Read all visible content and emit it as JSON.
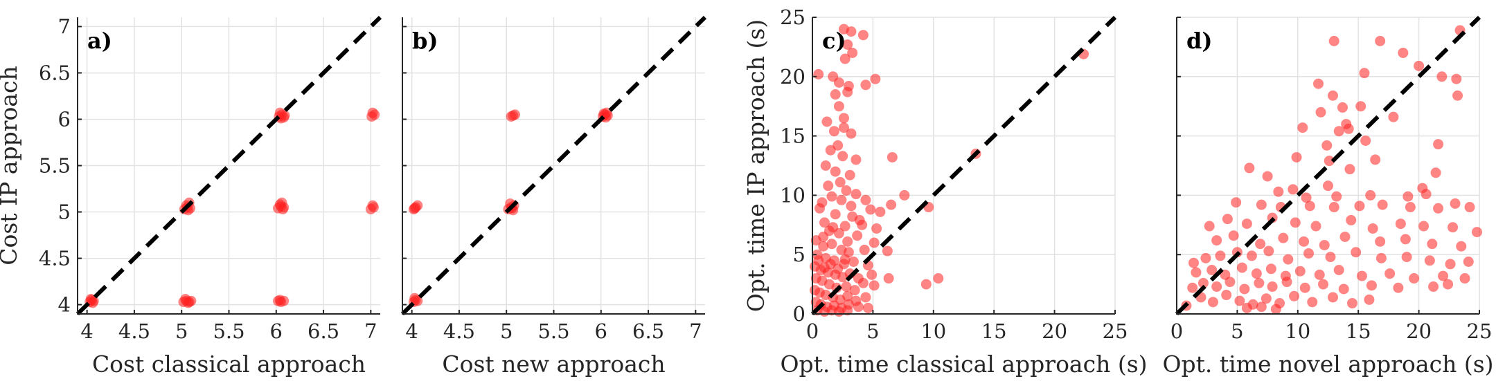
{
  "chart_data": [
    {
      "type": "scatter",
      "panel_label": "a)",
      "xlabel": "Cost classical approach",
      "ylabel": "Cost IP approach",
      "xlim": [
        3.9,
        7.1
      ],
      "ylim": [
        3.9,
        7.1
      ],
      "xticks": [
        4,
        4.5,
        5,
        5.5,
        6,
        6.5,
        7
      ],
      "yticks": [
        4,
        4.5,
        5,
        5.5,
        6,
        6.5,
        7
      ],
      "grid": true,
      "diagonal": "y = x (dashed black)",
      "point_color": "#ff2020",
      "points": [
        [
          4.03,
          4.03
        ],
        [
          4.05,
          4.05
        ],
        [
          4.07,
          4.04
        ],
        [
          4.04,
          4.06
        ],
        [
          4.06,
          4.02
        ],
        [
          5.02,
          4.03
        ],
        [
          5.05,
          4.04
        ],
        [
          5.08,
          4.03
        ],
        [
          5.1,
          4.04
        ],
        [
          5.04,
          4.06
        ],
        [
          5.07,
          4.02
        ],
        [
          5.03,
          5.03
        ],
        [
          5.06,
          5.05
        ],
        [
          5.09,
          5.04
        ],
        [
          5.05,
          5.07
        ],
        [
          5.08,
          5.1
        ],
        [
          5.07,
          5.02
        ],
        [
          6.02,
          4.04
        ],
        [
          6.05,
          4.03
        ],
        [
          6.08,
          4.04
        ],
        [
          6.04,
          4.05
        ],
        [
          6.02,
          5.04
        ],
        [
          6.05,
          5.06
        ],
        [
          6.08,
          5.05
        ],
        [
          6.04,
          5.08
        ],
        [
          6.07,
          5.03
        ],
        [
          6.06,
          5.1
        ],
        [
          6.03,
          6.03
        ],
        [
          6.06,
          6.05
        ],
        [
          6.09,
          6.04
        ],
        [
          6.04,
          6.07
        ],
        [
          6.08,
          6.02
        ],
        [
          6.05,
          6.01
        ],
        [
          7.0,
          5.03
        ],
        [
          7.03,
          5.05
        ],
        [
          7.02,
          5.07
        ],
        [
          7.01,
          6.03
        ],
        [
          7.04,
          6.05
        ],
        [
          7.02,
          6.07
        ]
      ]
    },
    {
      "type": "scatter",
      "panel_label": "b)",
      "xlabel": "Cost new approach",
      "ylabel": "",
      "xlim": [
        3.9,
        7.1
      ],
      "ylim": [
        3.9,
        7.1
      ],
      "xticks": [
        4,
        4.5,
        5,
        5.5,
        6,
        6.5,
        7
      ],
      "yticks": [],
      "grid": true,
      "diagonal": "y = x (dashed black)",
      "point_color": "#ff2020",
      "points": [
        [
          4.02,
          4.03
        ],
        [
          4.04,
          4.05
        ],
        [
          4.06,
          4.04
        ],
        [
          4.03,
          4.07
        ],
        [
          4.02,
          5.03
        ],
        [
          4.04,
          5.05
        ],
        [
          4.06,
          5.07
        ],
        [
          4.03,
          5.04
        ],
        [
          5.02,
          5.03
        ],
        [
          5.05,
          5.05
        ],
        [
          5.08,
          5.07
        ],
        [
          5.04,
          5.09
        ],
        [
          5.07,
          5.02
        ],
        [
          5.06,
          5.04
        ],
        [
          5.05,
          6.03
        ],
        [
          5.07,
          6.04
        ],
        [
          5.09,
          6.05
        ],
        [
          6.02,
          6.03
        ],
        [
          6.04,
          6.05
        ],
        [
          6.06,
          6.07
        ],
        [
          6.05,
          6.02
        ],
        [
          6.07,
          6.04
        ],
        [
          6.03,
          6.06
        ]
      ]
    },
    {
      "type": "scatter",
      "panel_label": "c)",
      "xlabel": "Opt. time classical approach (s)",
      "ylabel": "Opt. time IP approach (s)",
      "xlim": [
        0,
        25
      ],
      "ylim": [
        0,
        25
      ],
      "xticks": [
        0,
        5,
        10,
        15,
        20,
        25
      ],
      "yticks": [
        0,
        5,
        10,
        15,
        20,
        25
      ],
      "grid": true,
      "diagonal": "y = x (dashed black)",
      "point_color": "#ff2020",
      "points": [
        [
          0.5,
          20.2
        ],
        [
          2.6,
          24.0
        ],
        [
          3.2,
          23.8
        ],
        [
          4.2,
          23.5
        ],
        [
          2.9,
          22.7
        ],
        [
          3.3,
          22.0
        ],
        [
          2.7,
          21.5
        ],
        [
          1.7,
          20.0
        ],
        [
          2.2,
          19.5
        ],
        [
          3.0,
          19.2
        ],
        [
          5.2,
          19.8
        ],
        [
          4.4,
          19.3
        ],
        [
          1.9,
          18.5
        ],
        [
          2.9,
          18.7
        ],
        [
          2.2,
          17.5
        ],
        [
          2.6,
          16.5
        ],
        [
          1.2,
          16.2
        ],
        [
          1.8,
          15.4
        ],
        [
          2.6,
          15.7
        ],
        [
          3.2,
          15.2
        ],
        [
          2.1,
          14.2
        ],
        [
          1.5,
          13.8
        ],
        [
          2.5,
          13.3
        ],
        [
          3.6,
          13.0
        ],
        [
          6.6,
          13.2
        ],
        [
          13.5,
          13.5
        ],
        [
          22.4,
          21.9
        ],
        [
          1.1,
          12.5
        ],
        [
          1.9,
          12.0
        ],
        [
          3.1,
          11.7
        ],
        [
          2.3,
          11.1
        ],
        [
          1.3,
          10.8
        ],
        [
          2.8,
          10.4
        ],
        [
          3.6,
          10.1
        ],
        [
          1.6,
          9.9
        ],
        [
          2.4,
          9.6
        ],
        [
          4.4,
          9.6
        ],
        [
          7.6,
          10.0
        ],
        [
          9.6,
          9.0
        ],
        [
          5.6,
          8.6
        ],
        [
          6.5,
          9.2
        ],
        [
          0.6,
          8.9
        ],
        [
          1.9,
          8.4
        ],
        [
          3.3,
          8.2
        ],
        [
          1.0,
          7.7
        ],
        [
          2.7,
          7.4
        ],
        [
          4.1,
          7.5
        ],
        [
          1.4,
          7.0
        ],
        [
          2.2,
          6.8
        ],
        [
          3.7,
          6.6
        ],
        [
          5.1,
          6.0
        ],
        [
          0.3,
          6.2
        ],
        [
          0.9,
          5.7
        ],
        [
          1.6,
          5.9
        ],
        [
          2.4,
          5.4
        ],
        [
          3.0,
          5.2
        ],
        [
          4.3,
          5.4
        ],
        [
          6.2,
          5.3
        ],
        [
          0.4,
          5.0
        ],
        [
          1.1,
          4.7
        ],
        [
          1.8,
          4.5
        ],
        [
          2.6,
          4.2
        ],
        [
          3.4,
          4.4
        ],
        [
          4.6,
          4.1
        ],
        [
          0.2,
          4.0
        ],
        [
          0.7,
          3.7
        ],
        [
          1.3,
          3.5
        ],
        [
          1.9,
          3.3
        ],
        [
          2.5,
          3.1
        ],
        [
          3.1,
          3.4
        ],
        [
          3.8,
          3.0
        ],
        [
          4.9,
          3.3
        ],
        [
          6.3,
          3.0
        ],
        [
          9.4,
          2.5
        ],
        [
          10.4,
          3.0
        ],
        [
          0.3,
          3.0
        ],
        [
          0.8,
          2.8
        ],
        [
          1.4,
          2.5
        ],
        [
          2.0,
          2.2
        ],
        [
          2.8,
          2.3
        ],
        [
          3.5,
          2.0
        ],
        [
          4.2,
          2.6
        ],
        [
          5.1,
          2.4
        ],
        [
          0.2,
          2.0
        ],
        [
          0.6,
          1.8
        ],
        [
          1.1,
          1.6
        ],
        [
          1.7,
          1.4
        ],
        [
          2.3,
          1.2
        ],
        [
          2.9,
          1.5
        ],
        [
          3.6,
          1.1
        ],
        [
          4.4,
          1.4
        ],
        [
          0.3,
          1.0
        ],
        [
          0.7,
          0.8
        ],
        [
          1.2,
          0.6
        ],
        [
          1.8,
          0.7
        ],
        [
          2.4,
          0.5
        ],
        [
          3.0,
          0.8
        ],
        [
          3.8,
          0.6
        ],
        [
          0.4,
          0.3
        ],
        [
          1.0,
          0.2
        ],
        [
          1.6,
          0.3
        ],
        [
          2.2,
          0.2
        ],
        [
          2.9,
          0.3
        ],
        [
          4.6,
          0.5
        ],
        [
          0.5,
          4.5
        ],
        [
          1.0,
          3.9
        ],
        [
          1.5,
          4.2
        ],
        [
          2.1,
          3.8
        ],
        [
          2.7,
          4.6
        ],
        [
          0.9,
          6.5
        ],
        [
          1.7,
          7.3
        ],
        [
          2.9,
          6.1
        ],
        [
          3.9,
          7.9
        ],
        [
          4.8,
          8.8
        ],
        [
          5.3,
          7.2
        ],
        [
          0.8,
          9.4
        ],
        [
          3.2,
          9.1
        ]
      ]
    },
    {
      "type": "scatter",
      "panel_label": "d)",
      "xlabel": "Opt. time novel approach (s)",
      "ylabel": "",
      "xlim": [
        0,
        25
      ],
      "ylim": [
        0,
        25
      ],
      "xticks": [
        0,
        5,
        10,
        15,
        20,
        25
      ],
      "yticks": [],
      "grid": true,
      "diagonal": "y = x (dashed black)",
      "point_color": "#ff2020",
      "points": [
        [
          13.0,
          23.0
        ],
        [
          16.8,
          23.0
        ],
        [
          23.4,
          23.9
        ],
        [
          18.7,
          22.0
        ],
        [
          21.9,
          20.0
        ],
        [
          23.1,
          19.8
        ],
        [
          11.7,
          19.4
        ],
        [
          12.9,
          18.4
        ],
        [
          15.5,
          20.3
        ],
        [
          20.0,
          20.9
        ],
        [
          23.2,
          18.4
        ],
        [
          11.9,
          17.0
        ],
        [
          13.7,
          17.4
        ],
        [
          15.2,
          17.5
        ],
        [
          17.9,
          16.6
        ],
        [
          14.0,
          16.0
        ],
        [
          10.4,
          15.7
        ],
        [
          13.4,
          15.4
        ],
        [
          14.2,
          15.6
        ],
        [
          15.6,
          14.6
        ],
        [
          12.4,
          14.2
        ],
        [
          21.6,
          14.3
        ],
        [
          9.9,
          13.2
        ],
        [
          12.6,
          12.9
        ],
        [
          16.4,
          13.0
        ],
        [
          21.4,
          11.9
        ],
        [
          6.0,
          12.3
        ],
        [
          7.5,
          11.6
        ],
        [
          14.3,
          12.2
        ],
        [
          9.6,
          10.5
        ],
        [
          12.5,
          10.8
        ],
        [
          20.3,
          10.6
        ],
        [
          8.4,
          10.3
        ],
        [
          10.7,
          9.8
        ],
        [
          13.2,
          9.9
        ],
        [
          16.0,
          10.0
        ],
        [
          19.1,
          9.9
        ],
        [
          20.6,
          10.1
        ],
        [
          23.0,
          9.3
        ],
        [
          4.9,
          9.4
        ],
        [
          7.0,
          9.2
        ],
        [
          8.6,
          9.0
        ],
        [
          11.0,
          9.1
        ],
        [
          13.0,
          9.0
        ],
        [
          15.1,
          9.1
        ],
        [
          17.0,
          9.2
        ],
        [
          19.3,
          9.0
        ],
        [
          21.6,
          8.9
        ],
        [
          24.2,
          9.0
        ],
        [
          2.7,
          7.4
        ],
        [
          4.2,
          8.0
        ],
        [
          5.8,
          7.6
        ],
        [
          7.9,
          8.1
        ],
        [
          9.8,
          7.7
        ],
        [
          11.5,
          7.4
        ],
        [
          14.4,
          7.9
        ],
        [
          16.2,
          7.2
        ],
        [
          18.5,
          7.6
        ],
        [
          20.4,
          7.4
        ],
        [
          22.8,
          7.3
        ],
        [
          24.8,
          6.9
        ],
        [
          3.3,
          6.2
        ],
        [
          4.7,
          6.6
        ],
        [
          6.9,
          5.9
        ],
        [
          8.8,
          6.4
        ],
        [
          10.5,
          6.1
        ],
        [
          12.2,
          5.8
        ],
        [
          13.9,
          6.5
        ],
        [
          16.8,
          6.1
        ],
        [
          18.9,
          6.3
        ],
        [
          21.1,
          5.9
        ],
        [
          23.5,
          5.7
        ],
        [
          1.4,
          4.3
        ],
        [
          2.4,
          4.7
        ],
        [
          3.6,
          4.9
        ],
        [
          5.0,
          5.2
        ],
        [
          6.2,
          4.9
        ],
        [
          7.6,
          5.3
        ],
        [
          9.2,
          4.6
        ],
        [
          10.9,
          5.1
        ],
        [
          12.7,
          4.8
        ],
        [
          14.8,
          5.2
        ],
        [
          16.9,
          4.7
        ],
        [
          19.0,
          4.8
        ],
        [
          20.9,
          4.5
        ],
        [
          22.6,
          4.2
        ],
        [
          24.1,
          4.4
        ],
        [
          1.6,
          3.5
        ],
        [
          2.9,
          3.7
        ],
        [
          4.0,
          3.3
        ],
        [
          5.4,
          3.9
        ],
        [
          6.6,
          3.4
        ],
        [
          7.8,
          3.8
        ],
        [
          9.0,
          3.2
        ],
        [
          10.2,
          3.6
        ],
        [
          11.8,
          3.3
        ],
        [
          13.4,
          3.7
        ],
        [
          15.3,
          3.2
        ],
        [
          17.6,
          3.4
        ],
        [
          19.6,
          3.0
        ],
        [
          22.0,
          3.2
        ],
        [
          23.8,
          3.0
        ],
        [
          1.3,
          2.2
        ],
        [
          2.2,
          2.6
        ],
        [
          3.3,
          2.3
        ],
        [
          4.4,
          2.7
        ],
        [
          5.6,
          2.1
        ],
        [
          6.8,
          2.6
        ],
        [
          7.9,
          2.3
        ],
        [
          9.1,
          2.7
        ],
        [
          10.6,
          2.2
        ],
        [
          12.1,
          2.5
        ],
        [
          13.8,
          2.1
        ],
        [
          16.1,
          2.4
        ],
        [
          18.3,
          2.2
        ],
        [
          21.2,
          2.3
        ],
        [
          22.4,
          2.5
        ],
        [
          0.8,
          0.7
        ],
        [
          2.0,
          1.4
        ],
        [
          3.0,
          1.0
        ],
        [
          4.1,
          1.6
        ],
        [
          5.2,
          1.1
        ],
        [
          6.3,
          0.8
        ],
        [
          7.4,
          1.3
        ],
        [
          8.5,
          0.9
        ],
        [
          9.7,
          1.5
        ],
        [
          11.2,
          1.0
        ],
        [
          12.9,
          1.4
        ],
        [
          14.5,
          0.9
        ],
        [
          15.9,
          1.2
        ],
        [
          5.8,
          0.5
        ],
        [
          7.0,
          0.6
        ],
        [
          8.2,
          0.4
        ]
      ]
    }
  ]
}
